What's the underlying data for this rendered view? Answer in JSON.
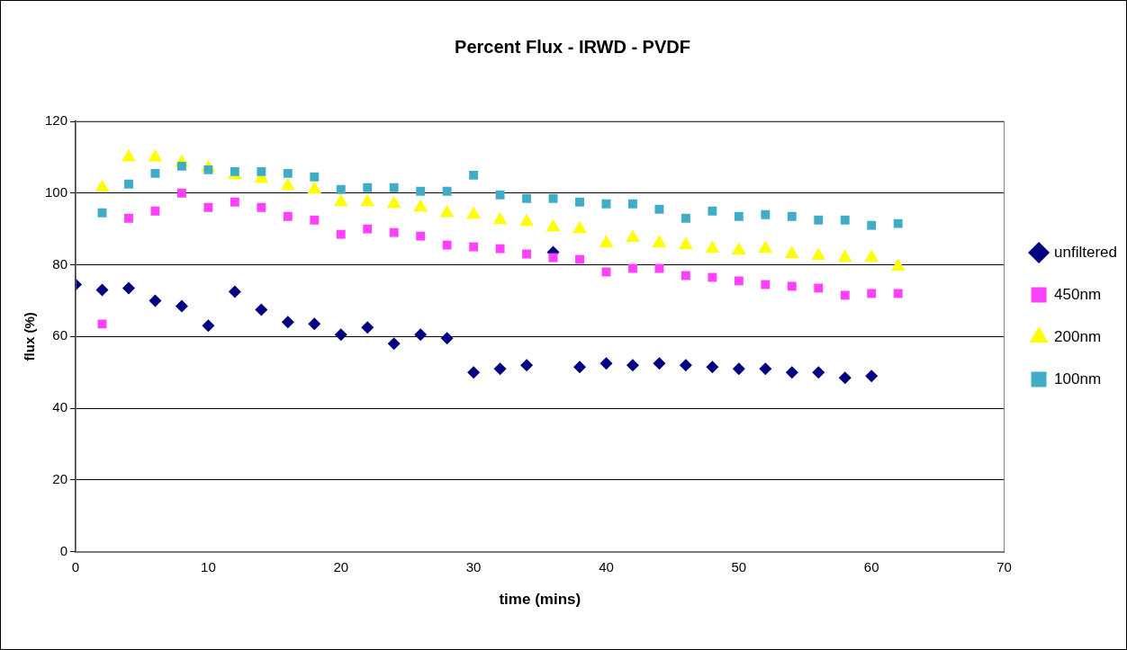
{
  "chart_data": {
    "type": "scatter",
    "title": "Percent Flux - IRWD - PVDF",
    "xlabel": "time (mins)",
    "ylabel": "flux (%)",
    "xlim": [
      0,
      70
    ],
    "xticks": [
      0,
      10,
      20,
      30,
      40,
      50,
      60,
      70
    ],
    "ylim": [
      0,
      120
    ],
    "yticks": [
      0,
      20,
      40,
      60,
      80,
      100,
      120
    ],
    "grid": "y",
    "legend": "right",
    "series": [
      {
        "name": "unfiltered",
        "color": "#000080",
        "marker": "diamond",
        "x": [
          0,
          2,
          4,
          6,
          8,
          10,
          12,
          14,
          16,
          18,
          20,
          22,
          24,
          26,
          28,
          30,
          32,
          34,
          36,
          38,
          40,
          42,
          44,
          46,
          48,
          50,
          52,
          54,
          56,
          58,
          60
        ],
        "values": [
          74.5,
          73,
          73.5,
          70,
          68.5,
          63,
          72.5,
          67.5,
          64,
          63.5,
          60.5,
          62.5,
          58,
          60.5,
          59.5,
          50,
          51,
          52,
          83.5,
          51.5,
          52.5,
          52,
          52.5,
          52,
          51.5,
          51,
          51,
          50,
          50,
          48.5,
          49
        ]
      },
      {
        "name": "450nm",
        "color": "#ff40ff",
        "marker": "square",
        "x": [
          2,
          4,
          6,
          8,
          10,
          12,
          14,
          16,
          18,
          20,
          22,
          24,
          26,
          28,
          30,
          32,
          34,
          36,
          38,
          40,
          42,
          44,
          46,
          48,
          50,
          52,
          54,
          56,
          58,
          60,
          62
        ],
        "values": [
          63.5,
          93,
          95,
          100,
          96,
          97.5,
          96,
          93.5,
          92.5,
          88.5,
          90,
          89,
          88,
          85.5,
          85,
          84.5,
          83,
          82,
          81.5,
          78,
          79,
          79,
          77,
          76.5,
          75.5,
          74.5,
          74,
          73.5,
          71.5,
          72,
          72
        ]
      },
      {
        "name": "200nm",
        "color": "#ffff00",
        "marker": "triangle",
        "x": [
          2,
          4,
          6,
          8,
          10,
          12,
          14,
          16,
          18,
          20,
          22,
          24,
          26,
          28,
          30,
          32,
          34,
          36,
          38,
          40,
          42,
          44,
          46,
          48,
          50,
          52,
          54,
          56,
          58,
          60,
          62
        ],
        "values": [
          101.5,
          110,
          110,
          108.5,
          107,
          105,
          104,
          102,
          101,
          97.5,
          97.5,
          97,
          96,
          94.5,
          94,
          92.5,
          92,
          90.5,
          90,
          86,
          87.5,
          86,
          85.5,
          84.5,
          84,
          84.5,
          83,
          82.5,
          82,
          82,
          79.5
        ]
      },
      {
        "name": "100nm",
        "color": "#40acc8",
        "marker": "square",
        "x": [
          2,
          4,
          6,
          8,
          10,
          12,
          14,
          16,
          18,
          20,
          22,
          24,
          26,
          28,
          30,
          32,
          34,
          36,
          38,
          40,
          42,
          44,
          46,
          48,
          50,
          52,
          54,
          56,
          58,
          60,
          62
        ],
        "values": [
          94.5,
          102.5,
          105.5,
          107.5,
          106.5,
          106,
          106,
          105.5,
          104.5,
          101,
          101.5,
          101.5,
          100.5,
          100.5,
          105,
          99.5,
          98.5,
          98.5,
          97.5,
          97,
          97,
          95.5,
          93,
          95,
          93.5,
          94,
          93.5,
          92.5,
          92.5,
          91,
          91.5
        ]
      }
    ]
  }
}
